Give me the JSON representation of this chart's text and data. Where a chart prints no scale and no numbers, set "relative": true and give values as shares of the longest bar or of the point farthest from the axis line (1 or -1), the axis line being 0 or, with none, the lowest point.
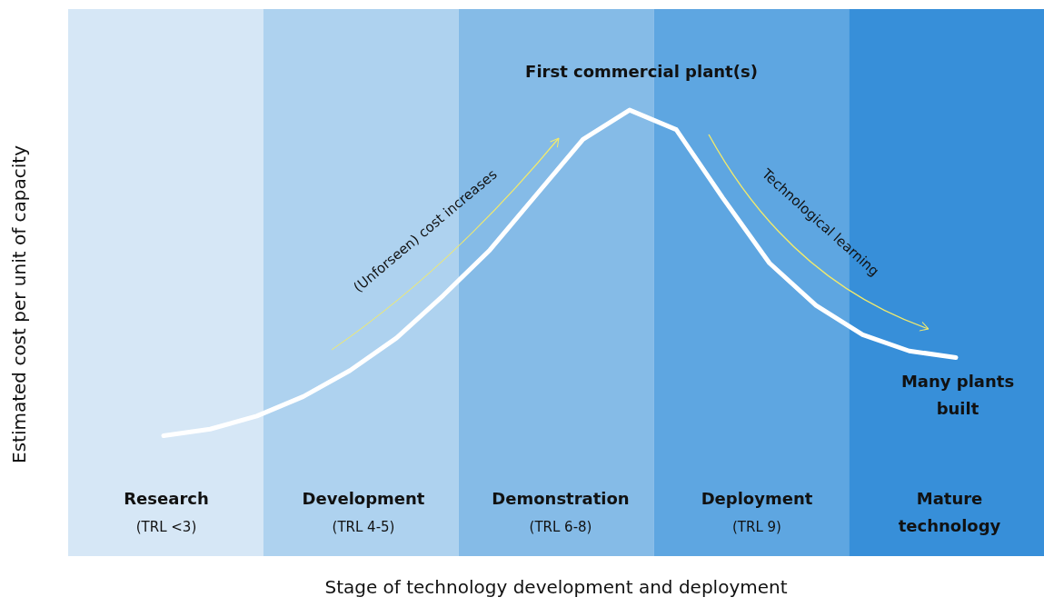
{
  "chart_data": {
    "type": "line",
    "relative": true,
    "tick_labels": false,
    "categories": [
      null,
      null,
      null,
      null,
      null,
      null,
      null,
      null,
      null,
      null,
      null,
      null,
      null,
      null,
      null,
      null,
      null,
      null
    ],
    "series": [
      {
        "color": "#ffffff",
        "values": [
          0,
          0.02,
          0.06,
          0.12,
          0.2,
          0.3,
          0.43,
          0.57,
          0.74,
          0.91,
          1,
          0.94,
          0.73,
          0.53,
          0.4,
          0.31,
          0.26,
          0.24
        ]
      }
    ],
    "annotations": [
      "First commercial plant(s)",
      "Many plants\nbuilt",
      "(Unforseen) cost increases",
      "Technological learning",
      "Research\n(TRL <3)",
      "Development\n(TRL 4-5)",
      "Demonstration\n(TRL 6-8)",
      "Deployment\n(TRL 9)",
      "Mature\ntechnology",
      "Stage of technology development and deployment",
      "Estimated cost per unit of capacity"
    ]
  }
}
